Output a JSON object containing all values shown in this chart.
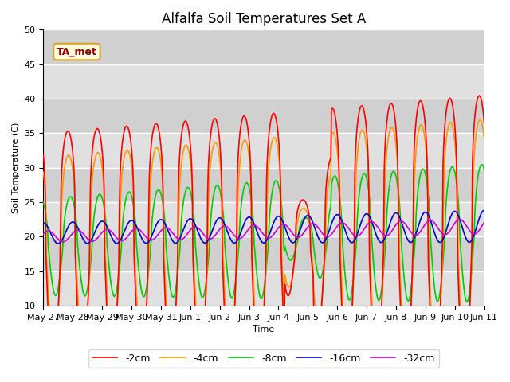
{
  "title": "Alfalfa Soil Temperatures Set A",
  "xlabel": "Time",
  "ylabel": "Soil Temperature (C)",
  "ylim": [
    10,
    50
  ],
  "annotation": "TA_met",
  "background_color": "#e8e8e8",
  "grid_color": "white",
  "series_colors": [
    "#ff0000",
    "#ff9900",
    "#00cc00",
    "#0000cc",
    "#cc00cc"
  ],
  "series_labels": [
    "-2cm",
    "-4cm",
    "-8cm",
    "-16cm",
    "-32cm"
  ],
  "tick_labels": [
    "May 27",
    "May 28",
    "May 29",
    "May 30",
    "May 31",
    "Jun 1",
    "Jun 2",
    "Jun 3",
    "Jun 4",
    "Jun 5",
    "Jun 6",
    "Jun 7",
    "Jun 8",
    "Jun 9",
    "Jun 10",
    "Jun 11"
  ],
  "line_width": 1.2,
  "legend_fontsize": 9,
  "title_fontsize": 12,
  "axis_fontsize": 8
}
